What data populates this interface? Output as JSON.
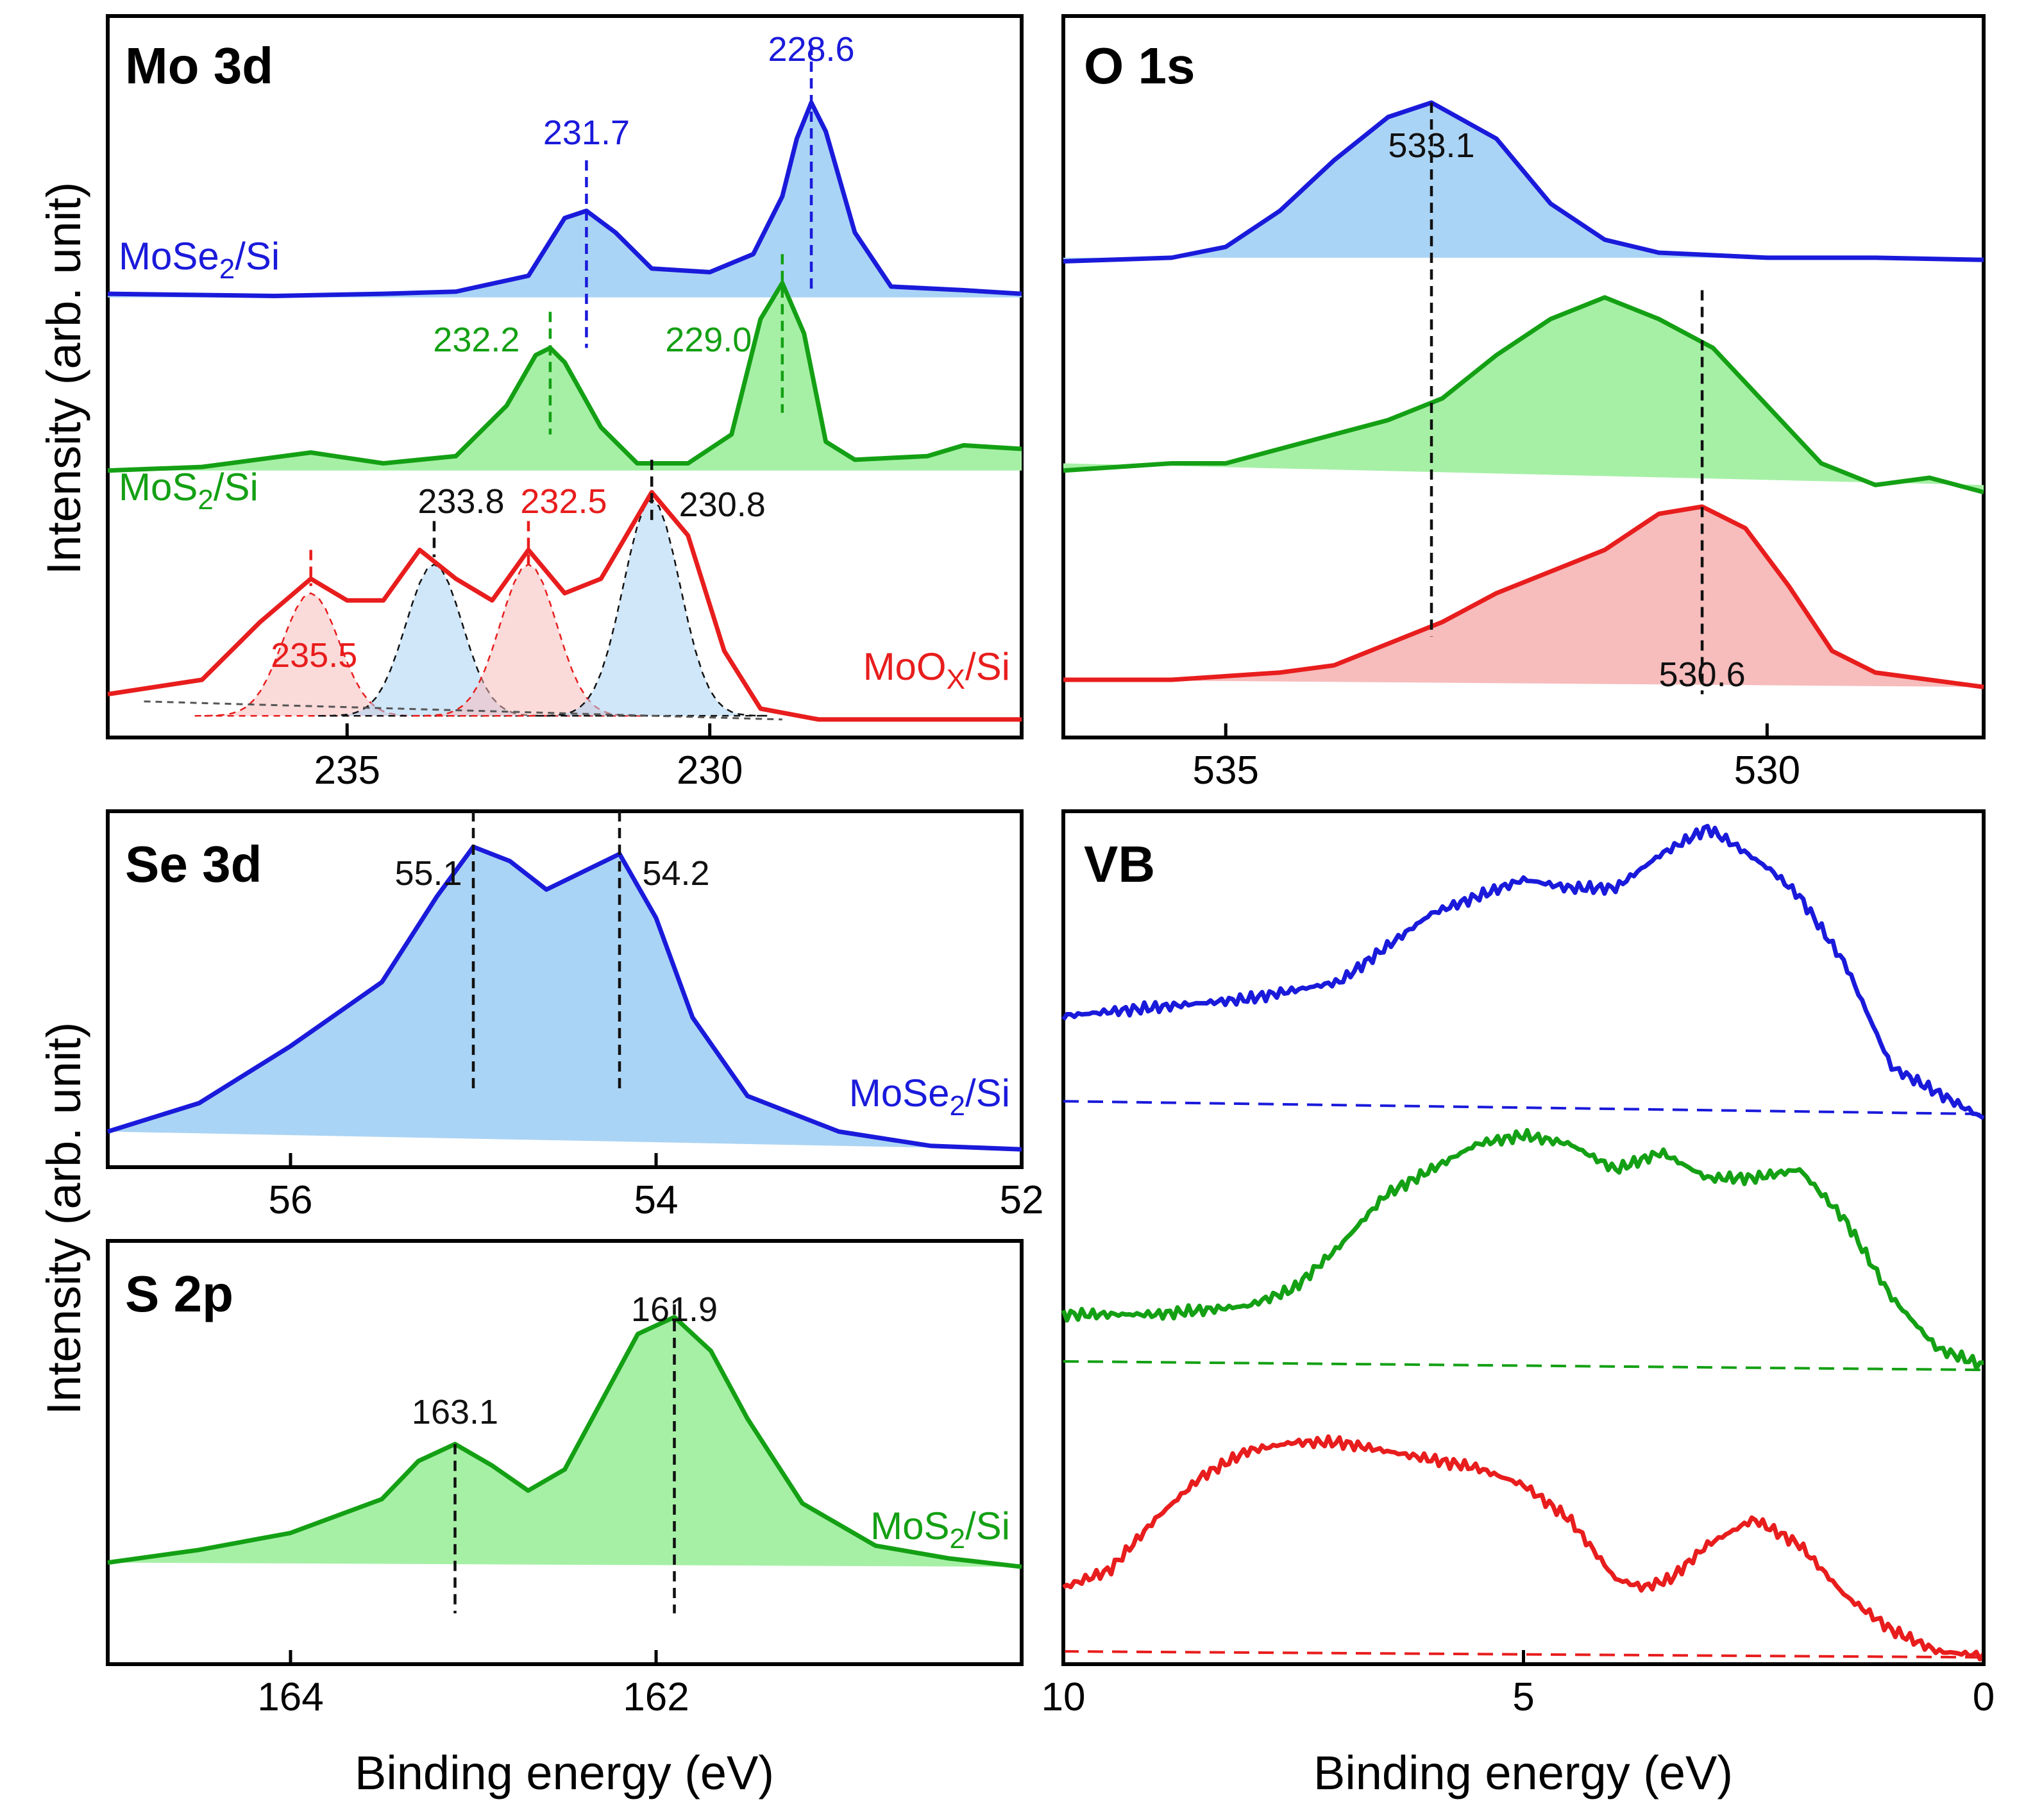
{
  "figure": {
    "y_axis_title": "Intensity (arb. unit)",
    "x_axis_title": "Binding energy (eV)"
  },
  "colors": {
    "blue": "#1a1adb",
    "blue_fill": "#aad4f5",
    "green": "#14a014",
    "green_fill": "#a6f0a6",
    "red": "#e81d1d",
    "red_fill": "#f7bcbc",
    "black": "#111111"
  },
  "chart_data": [
    {
      "id": "mo3d",
      "type": "line",
      "title": "Mo 3d",
      "xlabel": "",
      "ylabel": "Intensity (arb. unit)",
      "xlim": [
        238.3,
        225.7
      ],
      "ylim": [
        0,
        1
      ],
      "xticks": [
        235,
        230
      ],
      "x": [
        237.8,
        236.5,
        235.5,
        234.5,
        233.8,
        233.0,
        232.5,
        231.8,
        230.8,
        230.0,
        229.0,
        228.6,
        228.0,
        227.0,
        226.0
      ],
      "series": [
        {
          "name": "MoSe2/Si",
          "color": "blue",
          "x": [
            238.3,
            236.0,
            234.5,
            233.5,
            232.5,
            232.0,
            231.7,
            231.3,
            230.8,
            230.0,
            229.4,
            229.0,
            228.8,
            228.6,
            228.4,
            228.0,
            227.5,
            226.5,
            225.7
          ],
          "y": [
            0.615,
            0.612,
            0.615,
            0.618,
            0.64,
            0.72,
            0.73,
            0.7,
            0.65,
            0.645,
            0.67,
            0.75,
            0.83,
            0.88,
            0.84,
            0.7,
            0.625,
            0.62,
            0.615
          ]
        },
        {
          "name": "MoS2/Si",
          "color": "green",
          "x": [
            238.3,
            237.0,
            235.5,
            234.5,
            233.5,
            232.8,
            232.4,
            232.2,
            232.0,
            231.5,
            231.0,
            230.3,
            229.7,
            229.3,
            229.0,
            228.7,
            228.4,
            228.0,
            227.0,
            226.5,
            225.7
          ],
          "y": [
            0.37,
            0.375,
            0.395,
            0.38,
            0.39,
            0.46,
            0.53,
            0.54,
            0.52,
            0.43,
            0.38,
            0.38,
            0.42,
            0.58,
            0.63,
            0.56,
            0.41,
            0.385,
            0.39,
            0.405,
            0.4
          ]
        },
        {
          "name": "MoOx/Si",
          "color": "red",
          "x": [
            238.3,
            237.0,
            236.2,
            235.5,
            235.0,
            234.5,
            234.0,
            233.5,
            233.0,
            232.5,
            232.0,
            231.5,
            230.8,
            230.3,
            229.8,
            229.3,
            228.5,
            227.0,
            225.7
          ],
          "y": [
            0.06,
            0.08,
            0.16,
            0.22,
            0.19,
            0.19,
            0.26,
            0.22,
            0.19,
            0.26,
            0.2,
            0.22,
            0.34,
            0.28,
            0.12,
            0.04,
            0.025,
            0.025,
            0.025
          ]
        }
      ],
      "components": [
        {
          "center": 235.5,
          "color": "red",
          "amp": 0.17
        },
        {
          "center": 233.8,
          "color": "blue",
          "amp": 0.21
        },
        {
          "center": 232.5,
          "color": "red",
          "amp": 0.21
        },
        {
          "center": 230.8,
          "color": "blue",
          "amp": 0.3
        }
      ],
      "annotations": [
        {
          "text": "228.6",
          "x": 228.6,
          "color": "blue"
        },
        {
          "text": "231.7",
          "x": 231.7,
          "color": "blue"
        },
        {
          "text": "232.2",
          "x": 232.2,
          "color": "green"
        },
        {
          "text": "229.0",
          "x": 229.0,
          "color": "green"
        },
        {
          "text": "233.8",
          "x": 233.8,
          "color": "black"
        },
        {
          "text": "232.5",
          "x": 232.5,
          "color": "red"
        },
        {
          "text": "230.8",
          "x": 230.8,
          "color": "black"
        },
        {
          "text": "235.5",
          "x": 235.5,
          "color": "red"
        }
      ],
      "sample_labels": [
        {
          "main": "MoSe",
          "sub": "2",
          "rest": "/Si",
          "color": "blue"
        },
        {
          "main": "MoS",
          "sub": "2",
          "rest": "/Si",
          "color": "green"
        },
        {
          "main": "MoO",
          "sub": "X",
          "rest": "/Si",
          "color": "red"
        }
      ]
    },
    {
      "id": "o1s",
      "type": "line",
      "title": "O 1s",
      "xlabel": "",
      "ylabel": "",
      "xlim": [
        536.5,
        528.0
      ],
      "ylim": [
        0,
        1
      ],
      "xticks": [
        535,
        530
      ],
      "series": [
        {
          "name": "MoSe2/Si",
          "color": "blue",
          "x": [
            536.5,
            535.5,
            535.0,
            534.5,
            534.0,
            533.5,
            533.1,
            532.5,
            532.0,
            531.5,
            531.0,
            530.0,
            529.0,
            528.0
          ],
          "y": [
            0.66,
            0.665,
            0.68,
            0.73,
            0.8,
            0.86,
            0.88,
            0.83,
            0.74,
            0.69,
            0.672,
            0.665,
            0.665,
            0.662
          ]
        },
        {
          "name": "MoS2/Si",
          "color": "green",
          "x": [
            536.5,
            535.5,
            535.0,
            534.5,
            534.0,
            533.5,
            533.0,
            532.5,
            532.0,
            531.5,
            531.0,
            530.5,
            530.0,
            529.5,
            529.0,
            528.5,
            528.0
          ],
          "y": [
            0.37,
            0.38,
            0.38,
            0.4,
            0.42,
            0.44,
            0.47,
            0.53,
            0.58,
            0.61,
            0.58,
            0.54,
            0.46,
            0.38,
            0.35,
            0.36,
            0.34
          ]
        },
        {
          "name": "MoOx/Si",
          "color": "red",
          "x": [
            536.5,
            535.5,
            534.5,
            534.0,
            533.5,
            533.0,
            532.5,
            532.0,
            531.5,
            531.0,
            530.6,
            530.2,
            529.8,
            529.4,
            529.0,
            528.5,
            528.0
          ],
          "y": [
            0.08,
            0.08,
            0.09,
            0.1,
            0.13,
            0.16,
            0.2,
            0.23,
            0.26,
            0.31,
            0.32,
            0.29,
            0.21,
            0.12,
            0.09,
            0.08,
            0.07
          ]
        }
      ],
      "annotations": [
        {
          "text": "533.1",
          "x": 533.1,
          "color": "black"
        },
        {
          "text": "530.6",
          "x": 530.6,
          "color": "black"
        }
      ]
    },
    {
      "id": "se3d",
      "type": "line",
      "title": "Se 3d",
      "xlabel": "",
      "ylabel": "",
      "xlim": [
        57.0,
        52.0
      ],
      "ylim": [
        0,
        1
      ],
      "xticks": [
        56,
        54,
        52
      ],
      "series": [
        {
          "name": "MoSe2/Si",
          "color": "blue",
          "x": [
            57.0,
            56.5,
            56.0,
            55.5,
            55.2,
            55.0,
            54.8,
            54.6,
            54.4,
            54.2,
            54.0,
            53.8,
            53.5,
            53.0,
            52.5,
            52.0
          ],
          "y": [
            0.1,
            0.18,
            0.34,
            0.52,
            0.76,
            0.9,
            0.86,
            0.78,
            0.83,
            0.88,
            0.7,
            0.42,
            0.2,
            0.1,
            0.06,
            0.05
          ]
        }
      ],
      "annotations": [
        {
          "text": "55.1",
          "x": 55.1,
          "color": "black"
        },
        {
          "text": "54.2",
          "x": 54.2,
          "color": "black"
        }
      ],
      "sample_labels": [
        {
          "main": "MoSe",
          "sub": "2",
          "rest": "/Si",
          "color": "blue"
        }
      ]
    },
    {
      "id": "s2p",
      "type": "line",
      "title": "S 2p",
      "xlabel": "Binding energy (eV)",
      "ylabel": "",
      "xlim": [
        165.0,
        160.0
      ],
      "ylim": [
        0,
        1
      ],
      "xticks": [
        164,
        162
      ],
      "series": [
        {
          "name": "MoS2/Si",
          "color": "green",
          "x": [
            165.0,
            164.5,
            164.0,
            163.5,
            163.3,
            163.1,
            162.9,
            162.7,
            162.5,
            162.3,
            162.1,
            161.9,
            161.7,
            161.5,
            161.2,
            160.8,
            160.4,
            160.0
          ],
          "y": [
            0.24,
            0.27,
            0.31,
            0.39,
            0.48,
            0.52,
            0.47,
            0.41,
            0.46,
            0.62,
            0.78,
            0.82,
            0.74,
            0.58,
            0.38,
            0.28,
            0.25,
            0.23
          ]
        }
      ],
      "annotations": [
        {
          "text": "163.1",
          "x": 163.1,
          "color": "black"
        },
        {
          "text": "161.9",
          "x": 161.9,
          "color": "black"
        }
      ],
      "sample_labels": [
        {
          "main": "MoS",
          "sub": "2",
          "rest": "/Si",
          "color": "green"
        }
      ]
    },
    {
      "id": "vb",
      "type": "line",
      "title": "VB",
      "xlabel": "Binding energy (eV)",
      "ylabel": "",
      "xlim": [
        10,
        0
      ],
      "ylim": [
        0,
        1
      ],
      "xticks": [
        10,
        5,
        0
      ],
      "series": [
        {
          "name": "MoSe2/Si",
          "color": "blue",
          "x": [
            10,
            9,
            8,
            7,
            6.5,
            6,
            5.5,
            5,
            4.5,
            4,
            3.5,
            3,
            2.7,
            2.3,
            2,
            1.5,
            1,
            0.5,
            0
          ],
          "y": [
            0.76,
            0.77,
            0.78,
            0.8,
            0.84,
            0.88,
            0.9,
            0.92,
            0.91,
            0.91,
            0.95,
            0.98,
            0.96,
            0.93,
            0.9,
            0.82,
            0.7,
            0.67,
            0.64
          ]
        },
        {
          "name": "MoS2/Si",
          "color": "green",
          "x": [
            10,
            9,
            8,
            7.5,
            7,
            6.5,
            6,
            5.5,
            5,
            4.5,
            4,
            3.5,
            3,
            2.5,
            2,
            1.5,
            1,
            0.5,
            0
          ],
          "y": [
            0.41,
            0.41,
            0.42,
            0.44,
            0.49,
            0.55,
            0.58,
            0.61,
            0.62,
            0.61,
            0.58,
            0.6,
            0.57,
            0.57,
            0.58,
            0.52,
            0.43,
            0.37,
            0.35
          ]
        },
        {
          "name": "MoOx/Si",
          "color": "red",
          "x": [
            10,
            9.5,
            9,
            8.5,
            8,
            7.5,
            7,
            6.5,
            6,
            5.5,
            5,
            4.5,
            4,
            3.7,
            3.4,
            3,
            2.5,
            2,
            1.5,
            1,
            0.5,
            0
          ],
          "y": [
            0.09,
            0.11,
            0.17,
            0.22,
            0.25,
            0.26,
            0.26,
            0.25,
            0.24,
            0.23,
            0.21,
            0.17,
            0.1,
            0.09,
            0.1,
            0.14,
            0.17,
            0.14,
            0.08,
            0.04,
            0.015,
            0.01
          ]
        }
      ],
      "baselines": [
        {
          "color": "blue",
          "y0": 0.66,
          "y1": 0.645
        },
        {
          "color": "green",
          "y0": 0.355,
          "y1": 0.345
        },
        {
          "color": "red",
          "y0": 0.015,
          "y1": 0.008
        }
      ]
    }
  ]
}
